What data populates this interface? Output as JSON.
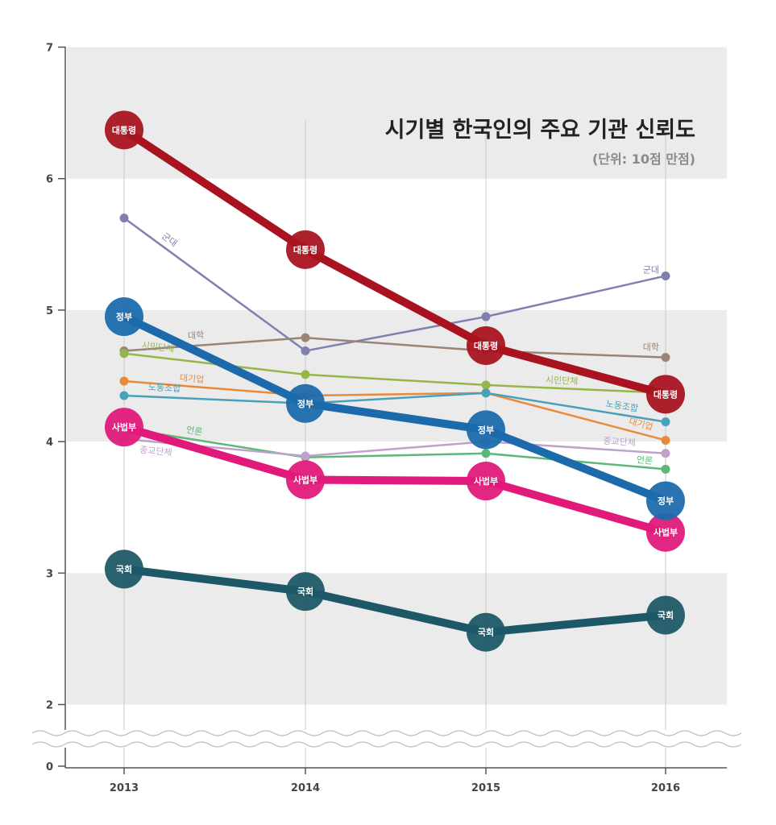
{
  "chart_data": {
    "type": "line",
    "title": "시기별 한국인의 주요 기관 신뢰도",
    "subtitle": "(단위: 10점 만점)",
    "x": [
      "2013",
      "2014",
      "2015",
      "2016"
    ],
    "yticks": [
      "0",
      "2",
      "3",
      "4",
      "5",
      "6",
      "7"
    ],
    "ylim": [
      2,
      7
    ],
    "axis_break": true,
    "grid": "alternating horizontal bands",
    "series": [
      {
        "name": "대통령",
        "major": true,
        "color": "#a8131f",
        "values": [
          6.37,
          5.46,
          4.73,
          4.36
        ]
      },
      {
        "name": "정부",
        "major": true,
        "color": "#1c6aac",
        "values": [
          4.95,
          4.29,
          4.09,
          3.55
        ]
      },
      {
        "name": "사법부",
        "major": true,
        "color": "#e0197a",
        "values": [
          4.11,
          3.71,
          3.7,
          3.31
        ]
      },
      {
        "name": "국회",
        "major": true,
        "color": "#1d5867",
        "values": [
          3.03,
          2.86,
          2.55,
          2.68
        ]
      },
      {
        "name": "군대",
        "major": false,
        "color": "#8080b0",
        "values": [
          5.7,
          4.69,
          4.95,
          5.26
        ]
      },
      {
        "name": "대학",
        "major": false,
        "color": "#9a8476",
        "values": [
          4.69,
          4.79,
          4.69,
          4.64
        ]
      },
      {
        "name": "시민단체",
        "major": false,
        "color": "#96b64a",
        "values": [
          4.67,
          4.51,
          4.43,
          4.37
        ]
      },
      {
        "name": "대기업",
        "major": false,
        "color": "#e88a3a",
        "values": [
          4.46,
          4.35,
          4.37,
          4.01
        ]
      },
      {
        "name": "노동조합",
        "major": false,
        "color": "#49a0bb",
        "values": [
          4.35,
          4.29,
          4.37,
          4.15
        ]
      },
      {
        "name": "언론",
        "major": false,
        "color": "#5cb878",
        "values": [
          4.1,
          3.88,
          3.91,
          3.79
        ]
      },
      {
        "name": "종교단체",
        "major": false,
        "color": "#bfa2cc",
        "values": [
          4.02,
          3.89,
          4.0,
          3.91
        ]
      }
    ]
  }
}
